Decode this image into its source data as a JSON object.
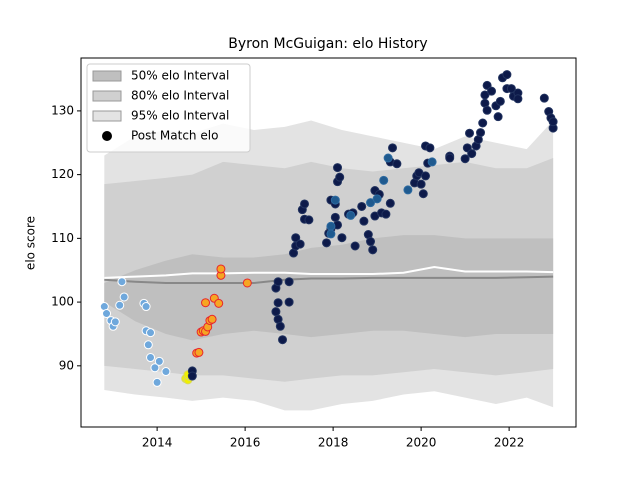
{
  "chart_data": {
    "type": "interval",
    "title": "Byron McGuigan: elo History",
    "ylabel": "elo score",
    "xlim": [
      2012.27,
      2023.52
    ],
    "ylim": [
      80.4,
      138.3
    ],
    "xticks": [
      2014,
      2016,
      2018,
      2020,
      2022
    ],
    "yticks": [
      90,
      100,
      110,
      120,
      130
    ],
    "legend": "upper left",
    "x": [
      2012.8,
      2013.5,
      2014.2,
      2014.8,
      2015.5,
      2016.2,
      2016.9,
      2017.5,
      2018.2,
      2018.9,
      2019.6,
      2020.3,
      2021.0,
      2021.7,
      2022.4,
      2023.0
    ],
    "bands": [
      {
        "name": "95% elo Interval",
        "color": "#e3e3e3",
        "upper": [
          123,
          126,
          127,
          126.5,
          128,
          127,
          127.5,
          128.5,
          127,
          126,
          125,
          124,
          126,
          125,
          124,
          128.5
        ],
        "lower": [
          86.2,
          85.5,
          85,
          84.5,
          85,
          84.5,
          83,
          83,
          84,
          84.5,
          85.5,
          86,
          85,
          84,
          85,
          83.5
        ]
      },
      {
        "name": "80% elo Interval",
        "color": "#d0d0d0",
        "upper": [
          118.5,
          119,
          119.5,
          120,
          122,
          121.5,
          121,
          122,
          121,
          120.5,
          121,
          121.5,
          122,
          121,
          121,
          122.6
        ],
        "lower": [
          90,
          89.5,
          89,
          88.5,
          88.5,
          88,
          87.5,
          88,
          88.5,
          88.5,
          89,
          89.5,
          89,
          88.5,
          89,
          89.5
        ]
      },
      {
        "name": "50% elo Interval",
        "color": "#bfbfbf",
        "upper": [
          103,
          105,
          106.5,
          107.5,
          107,
          107,
          107.5,
          108.5,
          109,
          110,
          110.5,
          110.5,
          110,
          110,
          110,
          110
        ],
        "lower": [
          100,
          97,
          95,
          94,
          95,
          95.5,
          95,
          94.5,
          95,
          95.5,
          95.5,
          95,
          94.5,
          95,
          95,
          95
        ]
      }
    ],
    "lines": [
      {
        "color": "#888888",
        "values": [
          103.5,
          103.2,
          103,
          103,
          103,
          103,
          103.5,
          103.7,
          103.7,
          103.8,
          103.8,
          103.8,
          103.8,
          103.8,
          103.9,
          104
        ]
      },
      {
        "color": "#ffffff",
        "values": [
          103.8,
          104,
          104.2,
          104.5,
          104.5,
          104.6,
          104.6,
          104.4,
          104.4,
          104.4,
          104.6,
          105.5,
          104.8,
          104.8,
          104.8,
          104.7
        ]
      }
    ],
    "scatter": {
      "name": "Post Match elo",
      "legend_color": "#000000",
      "groups": [
        {
          "color": "#6fa8dc",
          "edgecolor": "#ffffff",
          "x": [
            2012.8,
            2012.85,
            2012.95,
            2013.0,
            2013.05,
            2013.15,
            2013.2,
            2013.25,
            2013.7,
            2013.75,
            2013.75,
            2013.85,
            2013.8,
            2013.85,
            2013.95,
            2014.0,
            2014.05,
            2014.2
          ],
          "values": [
            99.3,
            98.2,
            97.1,
            96.2,
            96.9,
            99.5,
            103.2,
            100.8,
            99.8,
            99.3,
            95.5,
            95.2,
            93.3,
            91.3,
            89.7,
            87.4,
            90.7,
            89.1
          ]
        },
        {
          "color": "#f0f000",
          "edgecolor": "#d8d860",
          "x": [
            2014.65,
            2014.7,
            2014.75,
            2014.7
          ],
          "values": [
            88.0,
            87.8,
            88.3,
            88.6
          ]
        },
        {
          "color": "#f5a623",
          "edgecolor": "#e8262d",
          "x": [
            2014.9,
            2014.95,
            2015.0,
            2015.05,
            2015.1,
            2015.15,
            2015.2,
            2015.25,
            2015.1,
            2015.3,
            2015.4,
            2015.45,
            2015.45,
            2016.05
          ],
          "values": [
            92.0,
            92.1,
            95.3,
            95.5,
            95.4,
            96.1,
            97.1,
            97.3,
            99.9,
            100.6,
            99.8,
            104.2,
            105.2,
            103.0
          ]
        },
        {
          "color": "#0d1a4a",
          "edgecolor": "#22335f",
          "x": [
            2014.8,
            2014.8,
            2016.7,
            2016.75,
            2016.8,
            2016.85,
            2016.75,
            2016.7,
            2016.75,
            2017.0,
            2017.0,
            2017.1,
            2017.15,
            2017.15,
            2017.25,
            2017.35,
            2017.3,
            2017.35,
            2017.45,
            2017.85,
            2017.9,
            2017.95,
            2017.95,
            2018.05,
            2018.1,
            2018.15,
            2018.1,
            2018.05,
            2018.1,
            2018.2,
            2018.35,
            2018.45,
            2018.5,
            2018.65,
            2018.7,
            2018.8,
            2018.85,
            2018.9,
            2018.95,
            2018.95,
            2019.05,
            2019.1,
            2019.2,
            2019.3,
            2019.3,
            2019.35,
            2019.45,
            2019.85,
            2019.9,
            2019.95,
            2020.0,
            2020.05,
            2020.1,
            2020.15,
            2020.1,
            2020.2,
            2020.65,
            2020.65,
            2021.0,
            2021.05,
            2021.1,
            2021.15,
            2021.25,
            2021.3,
            2021.35,
            2021.4,
            2021.45,
            2021.45,
            2021.5,
            2021.5,
            2021.6,
            2021.7,
            2021.75,
            2021.8,
            2021.85,
            2021.95,
            2021.95,
            2022.05,
            2022.1,
            2022.2,
            2022.2,
            2022.8,
            2022.9,
            2022.95,
            2023.0,
            2023.0
          ],
          "values": [
            89.2,
            88.4,
            98.5,
            97.3,
            96.2,
            94.1,
            99.9,
            102.2,
            103.2,
            103.2,
            100.0,
            107.7,
            108.8,
            110.1,
            109.1,
            113.0,
            114.5,
            115.4,
            112.9,
            109.3,
            110.8,
            111.5,
            116.0,
            115.4,
            118.9,
            119.6,
            121.1,
            113.3,
            112.1,
            110.1,
            113.8,
            114.0,
            108.8,
            115.0,
            112.7,
            110.6,
            109.5,
            108.2,
            113.5,
            117.5,
            116.9,
            114.0,
            113.8,
            115.5,
            122.0,
            124.2,
            121.7,
            118.7,
            119.8,
            120.3,
            118.5,
            117.0,
            119.8,
            121.8,
            124.5,
            124.2,
            122.9,
            122.6,
            122.5,
            124.2,
            126.5,
            123.3,
            124.5,
            125.5,
            126.6,
            128.1,
            131.2,
            132.5,
            134.0,
            130.1,
            133.1,
            130.8,
            129.1,
            131.5,
            135.2,
            135.7,
            133.5,
            133.5,
            132.3,
            132.8,
            131.9,
            132.0,
            129.9,
            128.9,
            127.3,
            128.3
          ]
        },
        {
          "color": "#1f5a8f",
          "edgecolor": "#2d6aa0",
          "x": [
            2017.95,
            2017.95,
            2018.05,
            2018.4,
            2018.85,
            2019.0,
            2019.15,
            2019.25,
            2019.7,
            2020.25
          ],
          "values": [
            111.9,
            110.7,
            116.0,
            113.6,
            115.6,
            116.2,
            119.1,
            122.6,
            117.6,
            122.0
          ]
        }
      ]
    }
  }
}
